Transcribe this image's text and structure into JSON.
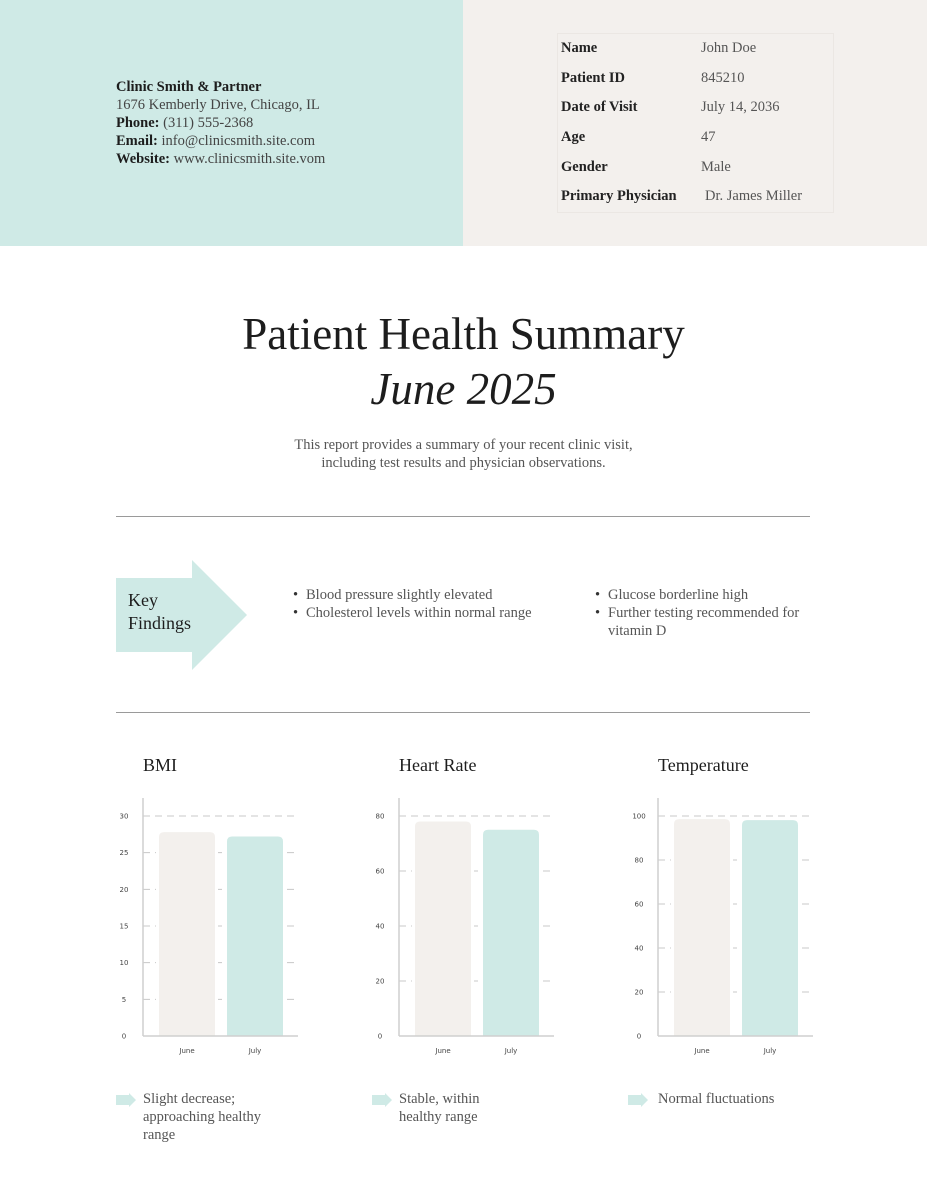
{
  "clinic": {
    "name": "Clinic Smith & Partner",
    "address": "1676 Kemberly Drive, Chicago, IL",
    "phone_label": "Phone:",
    "phone": "(311) 555-2368",
    "email_label": "Email:",
    "email": "info@clinicsmith.site.com",
    "website_label": "Website:",
    "website": "www.clinicsmith.site.vom"
  },
  "patient": [
    {
      "label": "Name",
      "value": "John Doe"
    },
    {
      "label": "Patient ID",
      "value": "845210"
    },
    {
      "label": "Date of Visit",
      "value": "July 14, 2036"
    },
    {
      "label": "Age",
      "value": "47"
    },
    {
      "label": "Gender",
      "value": "Male"
    },
    {
      "label": "Primary Physician",
      "value": "Dr. James Miller"
    }
  ],
  "report": {
    "title": "Patient Health Summary",
    "period": "June 2025",
    "description_line1": "This report provides a summary of your recent clinic visit,",
    "description_line2": "including test results and physician observations."
  },
  "key_findings": {
    "label_line1": "Key",
    "label_line2": "Findings",
    "col1": [
      "Blood pressure slightly elevated",
      "Cholesterol levels within normal range"
    ],
    "col2": [
      "Glucose borderline high",
      "Further testing recommended for vitamin D"
    ]
  },
  "colors": {
    "teal": "#cfeae6",
    "beige": "#f3f0ed"
  },
  "chart_data": [
    {
      "type": "bar",
      "title": "BMI",
      "categories": [
        "June",
        "July"
      ],
      "values": [
        27.8,
        27.2
      ],
      "ylim": [
        0,
        30
      ],
      "yticks": [
        "0",
        "5",
        "10",
        "15",
        "20",
        "25",
        "30"
      ],
      "tick_step": 5,
      "note": "Slight decrease; approaching healthy range",
      "grid": true
    },
    {
      "type": "bar",
      "title": "Heart Rate",
      "categories": [
        "June",
        "July"
      ],
      "values": [
        78,
        75
      ],
      "ylim": [
        0,
        80
      ],
      "yticks": [
        "0",
        "20",
        "40",
        "60",
        "80"
      ],
      "tick_step": 20,
      "note": "Stable, within healthy range",
      "grid": true
    },
    {
      "type": "bar",
      "title": "Temperature",
      "categories": [
        "June",
        "July"
      ],
      "values": [
        98.6,
        98.1
      ],
      "ylim": [
        0,
        100
      ],
      "yticks": [
        "0",
        "20",
        "40",
        "60",
        "80",
        "100"
      ],
      "tick_step": 20,
      "note": "Normal fluctuations",
      "grid": true
    }
  ]
}
